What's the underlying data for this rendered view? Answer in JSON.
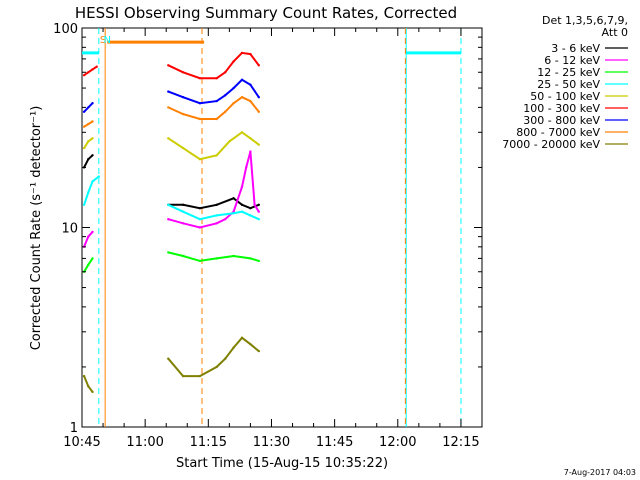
{
  "chart_data": {
    "type": "line",
    "title": "HESSI Observing Summary Count Rates, Corrected",
    "xlabel": "Start Time (15-Aug-15 10:35:22)",
    "ylabel": "Corrected Count Rate (s⁻¹ detector⁻¹)",
    "y_scale": "log",
    "ylim": [
      1,
      100
    ],
    "xlim_minutes": [
      10,
      105
    ],
    "x_ticks": [
      {
        "label": "10:45",
        "minute": 10
      },
      {
        "label": "11:00",
        "minute": 25
      },
      {
        "label": "11:15",
        "minute": 40
      },
      {
        "label": "11:30",
        "minute": 55
      },
      {
        "label": "11:45",
        "minute": 70
      },
      {
        "label": "12:00",
        "minute": 85
      },
      {
        "label": "12:15",
        "minute": 100
      }
    ],
    "y_ticks": [
      {
        "label": "1",
        "value": 1
      },
      {
        "label": "10",
        "value": 10
      },
      {
        "label": "100",
        "value": 100
      }
    ],
    "legend": {
      "placement": "top-right",
      "header_line1": "Det 1,3,5,6,7,9,",
      "header_line2": "Att 0"
    },
    "series": [
      {
        "name": "3 - 6 keV",
        "color": "#000000",
        "points": [
          [
            10.5,
            20
          ],
          [
            11.5,
            22
          ],
          [
            12.5,
            23
          ],
          [
            30.5,
            13
          ],
          [
            34,
            13
          ],
          [
            38,
            12.5
          ],
          [
            42,
            13
          ],
          [
            46,
            14
          ],
          [
            48,
            13
          ],
          [
            50,
            12.5
          ],
          [
            52,
            13
          ]
        ]
      },
      {
        "name": "6 - 12 keV",
        "color": "#ff00ff",
        "points": [
          [
            10.5,
            8
          ],
          [
            11.5,
            9
          ],
          [
            12.5,
            9.5
          ],
          [
            30.5,
            11
          ],
          [
            34,
            10.5
          ],
          [
            38,
            10
          ],
          [
            42,
            10.5
          ],
          [
            44,
            11
          ],
          [
            46,
            12
          ],
          [
            48,
            16
          ],
          [
            49,
            20
          ],
          [
            50,
            24
          ],
          [
            51,
            13
          ],
          [
            52,
            12
          ]
        ]
      },
      {
        "name": "12 - 25 keV",
        "color": "#00ff00",
        "points": [
          [
            10.5,
            6
          ],
          [
            11.5,
            6.5
          ],
          [
            12.5,
            7
          ],
          [
            30.5,
            7.5
          ],
          [
            34,
            7.2
          ],
          [
            38,
            6.8
          ],
          [
            42,
            7
          ],
          [
            46,
            7.2
          ],
          [
            50,
            7
          ],
          [
            52,
            6.8
          ]
        ]
      },
      {
        "name": "25 - 50 keV",
        "color": "#00ffff",
        "points": [
          [
            10.5,
            13
          ],
          [
            11.5,
            15
          ],
          [
            12.5,
            17
          ],
          [
            14,
            18
          ],
          [
            30.5,
            13
          ],
          [
            34,
            12
          ],
          [
            38,
            11
          ],
          [
            42,
            11.5
          ],
          [
            46,
            11.8
          ],
          [
            48,
            12
          ],
          [
            50,
            11.5
          ],
          [
            52,
            11
          ]
        ]
      },
      {
        "name": "50 - 100 keV",
        "color": "#cccc00",
        "points": [
          [
            10.5,
            25
          ],
          [
            11.5,
            27
          ],
          [
            12.5,
            28
          ],
          [
            30.5,
            28
          ],
          [
            34,
            25
          ],
          [
            38,
            22
          ],
          [
            42,
            23
          ],
          [
            45,
            27
          ],
          [
            48,
            30
          ],
          [
            50,
            28
          ],
          [
            52,
            26
          ]
        ]
      },
      {
        "name": "100 - 300 keV",
        "color": "#ff0000",
        "points": [
          [
            10.5,
            58
          ],
          [
            11.5,
            60
          ],
          [
            12.5,
            62
          ],
          [
            13.5,
            64
          ],
          [
            30.5,
            65
          ],
          [
            34,
            60
          ],
          [
            38,
            56
          ],
          [
            42,
            56
          ],
          [
            44,
            60
          ],
          [
            46,
            68
          ],
          [
            48,
            75
          ],
          [
            50,
            74
          ],
          [
            52,
            65
          ]
        ]
      },
      {
        "name": "300 - 800 keV",
        "color": "#0000ff",
        "points": [
          [
            10.5,
            38
          ],
          [
            11.5,
            40
          ],
          [
            12.5,
            42
          ],
          [
            30.5,
            48
          ],
          [
            34,
            45
          ],
          [
            38,
            42
          ],
          [
            42,
            43
          ],
          [
            44,
            46
          ],
          [
            46,
            50
          ],
          [
            48,
            55
          ],
          [
            50,
            52
          ],
          [
            52,
            45
          ]
        ]
      },
      {
        "name": "800 - 7000 keV",
        "color": "#ff8000",
        "points": [
          [
            10.5,
            32
          ],
          [
            11.5,
            33
          ],
          [
            12.5,
            34
          ],
          [
            30.5,
            40
          ],
          [
            34,
            37
          ],
          [
            38,
            35
          ],
          [
            42,
            35
          ],
          [
            44,
            38
          ],
          [
            46,
            42
          ],
          [
            48,
            45
          ],
          [
            50,
            43
          ],
          [
            52,
            38
          ]
        ]
      },
      {
        "name": "7000 - 20000 keV",
        "color": "#808000",
        "points": [
          [
            10.5,
            1.8
          ],
          [
            11.5,
            1.6
          ],
          [
            12.5,
            1.5
          ],
          [
            30.5,
            2.2
          ],
          [
            34,
            1.8
          ],
          [
            38,
            1.8
          ],
          [
            42,
            2.0
          ],
          [
            44,
            2.2
          ],
          [
            46,
            2.5
          ],
          [
            48,
            2.8
          ],
          [
            50,
            2.6
          ],
          [
            52,
            2.4
          ]
        ]
      }
    ],
    "orbit_flags": [
      {
        "label": "S",
        "minute": 15.0,
        "color": "#ff8000"
      },
      {
        "label": "N",
        "minute": 16.0,
        "color": "#00ffff"
      }
    ],
    "attenuator_level_bar": {
      "color": "#ff8000",
      "from_minute": 16,
      "to_minute": 39,
      "value": 85
    },
    "saa_level_bar": {
      "color": "#00ffff",
      "from_minute": 10,
      "to_minute": 14,
      "value": 75,
      "from_minute2": 87,
      "to_minute2": 100
    },
    "vertical_markers": [
      {
        "minute": 14.0,
        "color": "#00ffff",
        "style": "dashed"
      },
      {
        "minute": 15.5,
        "color": "#ff8000",
        "style": "solid"
      },
      {
        "minute": 38.5,
        "color": "#ff8000",
        "style": "dashed"
      },
      {
        "minute": 87.0,
        "color": "#00ffff",
        "style": "solid"
      },
      {
        "minute": 100.0,
        "color": "#00ffff",
        "style": "dashed"
      },
      {
        "minute": 86.8,
        "color": "#ff8000",
        "style": "dashed"
      }
    ]
  },
  "footer": {
    "date_stamp": "7-Aug-2017 04:03"
  }
}
